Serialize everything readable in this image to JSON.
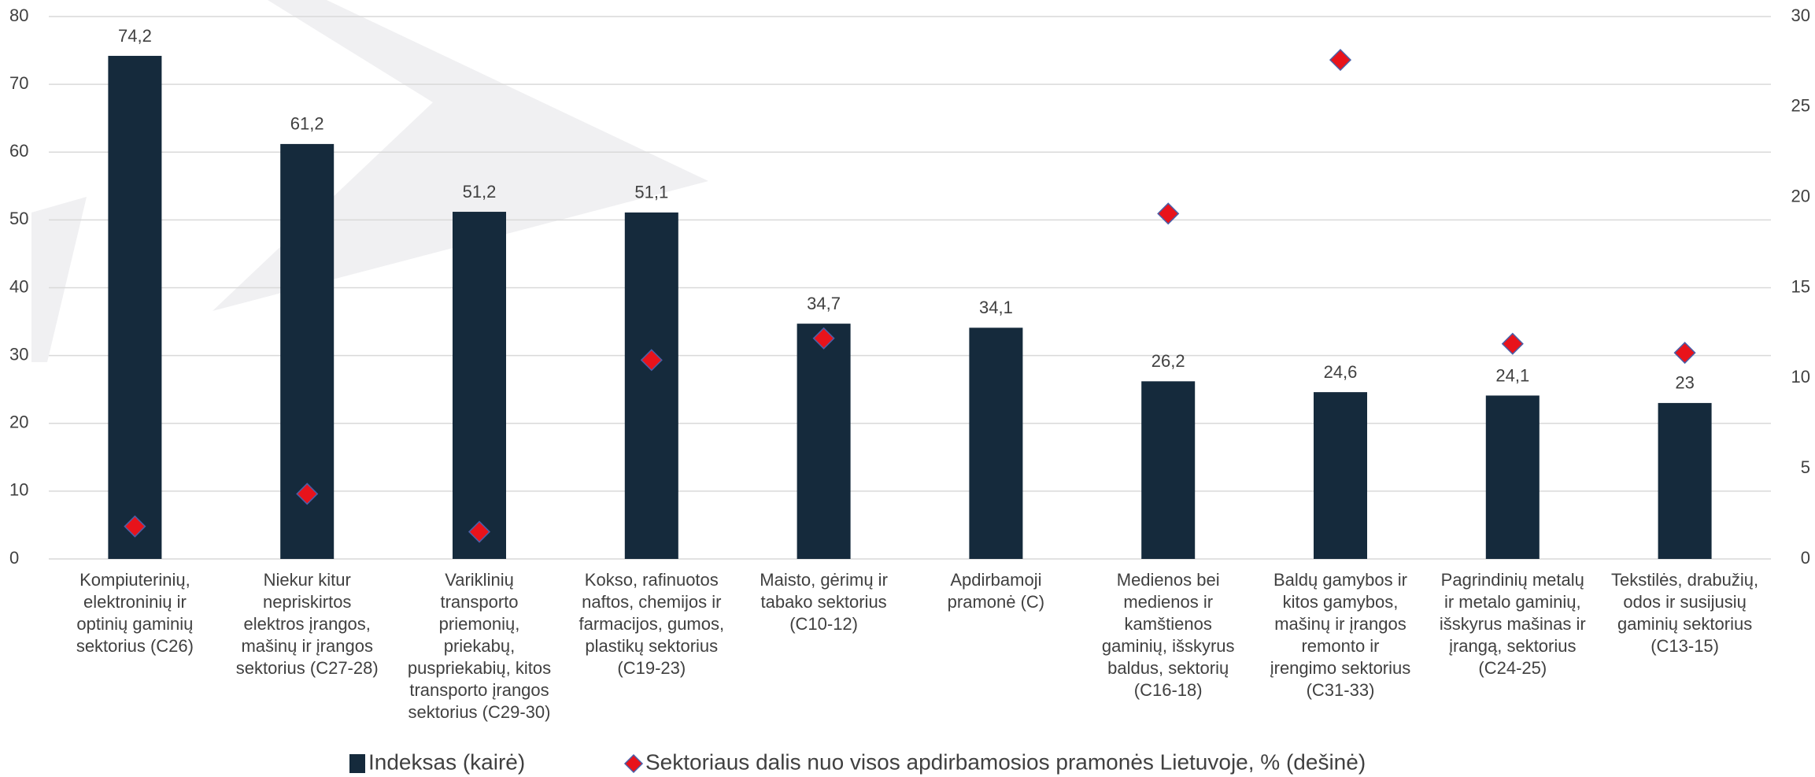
{
  "chart_data": {
    "type": "bar",
    "categories": [
      [
        "Kompiuterinių,",
        "elektroninių ir",
        "optinių gaminių",
        "sektorius (C26)"
      ],
      [
        "Niekur kitur",
        "nepriskirtos",
        "elektros įrangos,",
        "mašinų ir įrangos",
        "sektorius (C27-28)"
      ],
      [
        "Variklinių",
        "transporto",
        "priemonių,",
        "priekabų,",
        "puspriekabių, kitos",
        "transporto įrangos",
        "sektorius (C29-30)"
      ],
      [
        "Kokso, rafinuotos",
        "naftos, chemijos ir",
        "farmacijos, gumos,",
        "plastikų sektorius",
        "(C19-23)"
      ],
      [
        "Maisto, gėrimų ir",
        "tabako sektorius",
        "(C10-12)"
      ],
      [
        "Apdirbamoji",
        "pramonė (C)"
      ],
      [
        "Medienos bei",
        "medienos ir",
        "kamštienos",
        "gaminių, išskyrus",
        "baldus, sektorių",
        "(C16-18)"
      ],
      [
        "Baldų gamybos ir",
        "kitos gamybos,",
        "mašinų ir įrangos",
        "remonto ir",
        "įrengimo sektorius",
        "(C31-33)"
      ],
      [
        "Pagrindinių metalų",
        "ir metalo gaminių,",
        "išskyrus mašinas ir",
        "įrangą, sektorius",
        "(C24-25)"
      ],
      [
        "Tekstilės, drabužių,",
        "odos ir susijusių",
        "gaminių sektorius",
        "(C13-15)"
      ]
    ],
    "series": [
      {
        "name": "Indeksas (kairė)",
        "color": "#152a3c",
        "values": [
          74.2,
          61.2,
          51.2,
          51.1,
          34.7,
          34.1,
          26.2,
          24.6,
          24.1,
          23
        ],
        "value_labels": [
          "74,2",
          "61,2",
          "51,2",
          "51,1",
          "34,7",
          "34,1",
          "26,2",
          "24,6",
          "24,1",
          "23"
        ]
      },
      {
        "name": "Sektoriaus dalis nuo visos apdirbamosios pramonės Lietuvoje, % (dešinė)",
        "color": "#e8131b",
        "axis": "y2",
        "values": [
          1.8,
          3.6,
          1.5,
          11.0,
          12.2,
          null,
          19.1,
          27.6,
          11.9,
          11.4
        ]
      }
    ],
    "ylim": [
      0,
      80
    ],
    "yticks": [
      0,
      10,
      20,
      30,
      40,
      50,
      60,
      70,
      80
    ],
    "y2lim": [
      0,
      30
    ],
    "y2ticks": [
      0,
      5,
      10,
      15,
      20,
      25,
      30
    ],
    "grid": true
  }
}
